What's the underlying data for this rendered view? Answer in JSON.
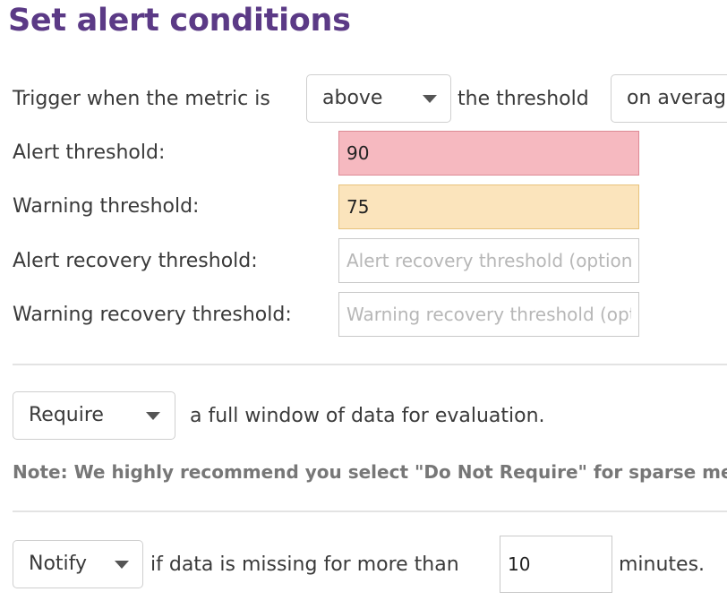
{
  "title": "Set alert conditions",
  "trigger": {
    "prefix": "Trigger when the metric is",
    "comparison_value": "above",
    "middle": "the threshold",
    "aggregation_value": "on average"
  },
  "thresholds": {
    "alert_label": "Alert threshold:",
    "alert_value": "90",
    "warning_label": "Warning threshold:",
    "warning_value": "75",
    "alert_recovery_label": "Alert recovery threshold:",
    "alert_recovery_placeholder": "Alert recovery threshold (optional)",
    "warning_recovery_label": "Warning recovery threshold:",
    "warning_recovery_placeholder": "Warning recovery threshold (optional)"
  },
  "require": {
    "select_value": "Require",
    "suffix": "a full window of data for evaluation.",
    "note": "Note: We highly recommend you select \"Do Not Require\" for sparse metrics"
  },
  "notify": {
    "select_value": "Notify",
    "middle": "if data is missing for more than",
    "minutes_value": "10",
    "suffix": "minutes."
  },
  "colors": {
    "title": "#5b3a86",
    "alert_field": "#f6b9c0",
    "warning_field": "#fbe4bc"
  },
  "icons": {
    "dropdown": "chevron-down-icon"
  }
}
